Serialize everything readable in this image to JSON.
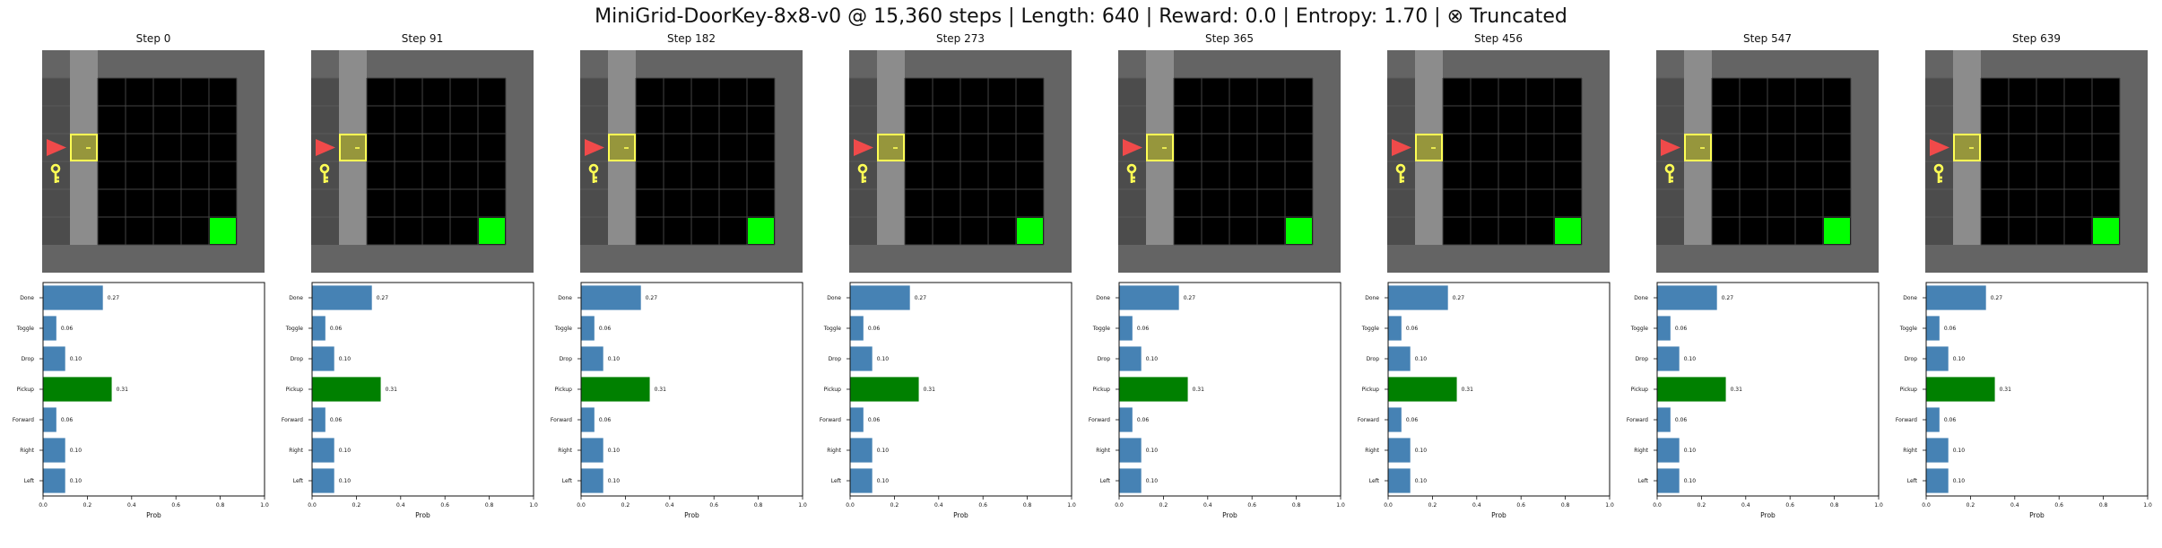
{
  "suptitle": "MiniGrid-DoorKey-8x8-v0 @ 15,360 steps | Length: 640 | Reward: 0.0 | Entropy: 1.70 | ⊗ Truncated",
  "colors": {
    "outer_wall": "#646464",
    "wall_column": "#8c8c8c",
    "dark_cell": "#4c4c4c",
    "unseen": "#000000",
    "grid_line": "#444444",
    "agent": "#f04a4a",
    "door_fill": "#96963c",
    "door_border": "#ffff55",
    "key": "#ffff55",
    "goal": "#00ff00",
    "bar_default": "#4682b4",
    "bar_selected": "#008000"
  },
  "icons": [
    "agent-triangle-icon",
    "key-icon",
    "door-icon",
    "goal-square"
  ],
  "panels": [
    {
      "step_title": "Step 0"
    },
    {
      "step_title": "Step 91"
    },
    {
      "step_title": "Step 182"
    },
    {
      "step_title": "Step 273"
    },
    {
      "step_title": "Step 365"
    },
    {
      "step_title": "Step 456"
    },
    {
      "step_title": "Step 547"
    },
    {
      "step_title": "Step 639"
    }
  ],
  "chart_data": {
    "type": "bar",
    "orientation": "horizontal",
    "categories": [
      "Done",
      "Toggle",
      "Drop",
      "Pickup",
      "Forward",
      "Right",
      "Left"
    ],
    "values": [
      0.27,
      0.06,
      0.1,
      0.31,
      0.06,
      0.1,
      0.1
    ],
    "value_labels": [
      "0.27",
      "0.06",
      "0.10",
      "0.31",
      "0.06",
      "0.10",
      "0.10"
    ],
    "selected_category": "Pickup",
    "xlabel": "Prob",
    "ylabel": "",
    "xlim": [
      0,
      1
    ],
    "xticks": [
      0,
      0.2,
      0.4,
      0.6,
      0.8,
      1.0
    ],
    "xtick_labels": [
      "0.0",
      "0.2",
      "0.4",
      "0.6",
      "0.8",
      "1.0"
    ],
    "grid": false,
    "panels_count": 8
  }
}
